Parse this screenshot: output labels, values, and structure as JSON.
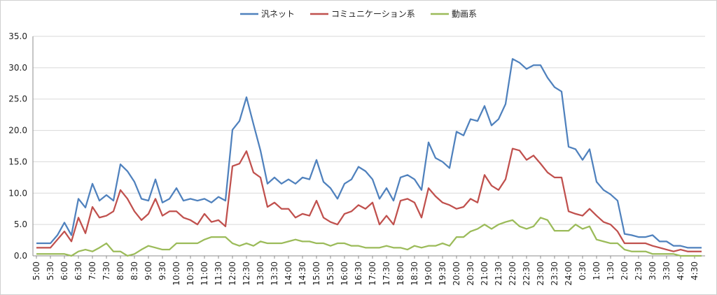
{
  "chart_data": {
    "type": "line",
    "title": "",
    "xlabel": "",
    "ylabel": "",
    "ylim": [
      0,
      35
    ],
    "yticks": [
      "0.0",
      "5.0",
      "10.0",
      "15.0",
      "20.0",
      "25.0",
      "30.0",
      "35.0"
    ],
    "grid": "horizontal",
    "legend_position": "top-center",
    "x_tick_labels": [
      "5:00",
      "5:30",
      "6:00",
      "6:30",
      "7:00",
      "7:30",
      "8:00",
      "8:30",
      "9:00",
      "9:30",
      "10:00",
      "10:30",
      "11:00",
      "11:30",
      "12:00",
      "12:30",
      "13:00",
      "13:30",
      "14:00",
      "14:30",
      "15:00",
      "15:30",
      "16:00",
      "16:30",
      "17:00",
      "17:30",
      "18:00",
      "18:30",
      "19:00",
      "19:30",
      "20:00",
      "20:30",
      "21:00",
      "21:30",
      "22:00",
      "22:30",
      "23:00",
      "23:30",
      "24:00",
      "0:30",
      "1:00",
      "1:30",
      "2:00",
      "2:30",
      "3:00",
      "3:30",
      "4:00",
      "4:30"
    ],
    "points_per_label": 2,
    "series": [
      {
        "name": "汎ネット",
        "color": "#4f81bd",
        "values": [
          2.0,
          2.0,
          2.0,
          3.3,
          5.3,
          3.3,
          9.1,
          7.7,
          11.5,
          8.8,
          9.7,
          8.8,
          14.6,
          13.5,
          11.8,
          9.1,
          8.8,
          12.2,
          8.5,
          9.1,
          10.8,
          8.8,
          9.1,
          8.8,
          9.1,
          8.5,
          9.4,
          8.8,
          20.1,
          21.5,
          25.3,
          21.0,
          16.8,
          11.5,
          12.5,
          11.5,
          12.2,
          11.5,
          12.5,
          12.2,
          15.3,
          11.8,
          10.8,
          9.1,
          11.5,
          12.2,
          14.2,
          13.5,
          12.2,
          9.1,
          10.8,
          8.8,
          12.5,
          12.9,
          12.2,
          10.5,
          18.1,
          15.6,
          15.0,
          14.0,
          19.8,
          19.2,
          21.8,
          21.5,
          23.9,
          20.8,
          21.8,
          24.2,
          31.4,
          30.8,
          29.8,
          30.4,
          30.4,
          28.4,
          26.9,
          26.2,
          17.4,
          17.0,
          15.3,
          17.0,
          11.8,
          10.5,
          9.8,
          8.8,
          3.5,
          3.3,
          3.0,
          3.0,
          3.3,
          2.3,
          2.3,
          1.6,
          1.6,
          1.3,
          1.3,
          1.3
        ]
      },
      {
        "name": "コミュニケーション系",
        "color": "#c0504d",
        "values": [
          1.3,
          1.3,
          1.3,
          2.6,
          3.9,
          2.3,
          6.1,
          3.6,
          7.8,
          6.1,
          6.4,
          7.1,
          10.5,
          9.1,
          7.1,
          5.7,
          6.7,
          9.1,
          6.4,
          7.1,
          7.1,
          6.1,
          5.7,
          5.0,
          6.7,
          5.4,
          5.7,
          4.7,
          14.3,
          14.7,
          16.7,
          13.3,
          12.5,
          7.8,
          8.5,
          7.5,
          7.5,
          6.1,
          6.7,
          6.4,
          8.8,
          6.1,
          5.4,
          5.0,
          6.7,
          7.1,
          8.1,
          7.5,
          8.5,
          5.0,
          6.4,
          5.0,
          8.8,
          9.1,
          8.5,
          6.1,
          10.8,
          9.5,
          8.5,
          8.1,
          7.5,
          7.8,
          9.1,
          8.5,
          12.9,
          11.2,
          10.5,
          12.2,
          17.1,
          16.8,
          15.3,
          16.0,
          14.7,
          13.3,
          12.5,
          12.5,
          7.1,
          6.7,
          6.4,
          7.5,
          6.4,
          5.4,
          5.0,
          3.9,
          2.0,
          2.0,
          2.0,
          2.0,
          1.6,
          1.3,
          1.0,
          0.7,
          1.0,
          0.7,
          0.7,
          0.7
        ]
      },
      {
        "name": "動画系",
        "color": "#9bbb59",
        "values": [
          0.3,
          0.3,
          0.3,
          0.3,
          0.3,
          0.0,
          0.7,
          1.0,
          0.7,
          1.3,
          2.0,
          0.7,
          0.7,
          0.0,
          0.3,
          1.0,
          1.6,
          1.3,
          1.0,
          1.0,
          2.0,
          2.0,
          2.0,
          2.0,
          2.6,
          3.0,
          3.0,
          3.0,
          2.0,
          1.6,
          2.0,
          1.6,
          2.3,
          2.0,
          2.0,
          2.0,
          2.3,
          2.6,
          2.3,
          2.3,
          2.0,
          2.0,
          1.6,
          2.0,
          2.0,
          1.6,
          1.6,
          1.3,
          1.3,
          1.3,
          1.6,
          1.3,
          1.3,
          1.0,
          1.6,
          1.3,
          1.6,
          1.6,
          2.0,
          1.6,
          3.0,
          3.0,
          3.9,
          4.3,
          5.0,
          4.3,
          5.0,
          5.4,
          5.7,
          4.7,
          4.3,
          4.7,
          6.1,
          5.7,
          4.0,
          4.0,
          4.0,
          5.0,
          4.3,
          4.7,
          2.6,
          2.3,
          2.0,
          2.0,
          1.0,
          0.7,
          0.7,
          0.7,
          0.3,
          0.3,
          0.3,
          0.3,
          0.0,
          0.0,
          0.0,
          0.0
        ]
      }
    ]
  }
}
